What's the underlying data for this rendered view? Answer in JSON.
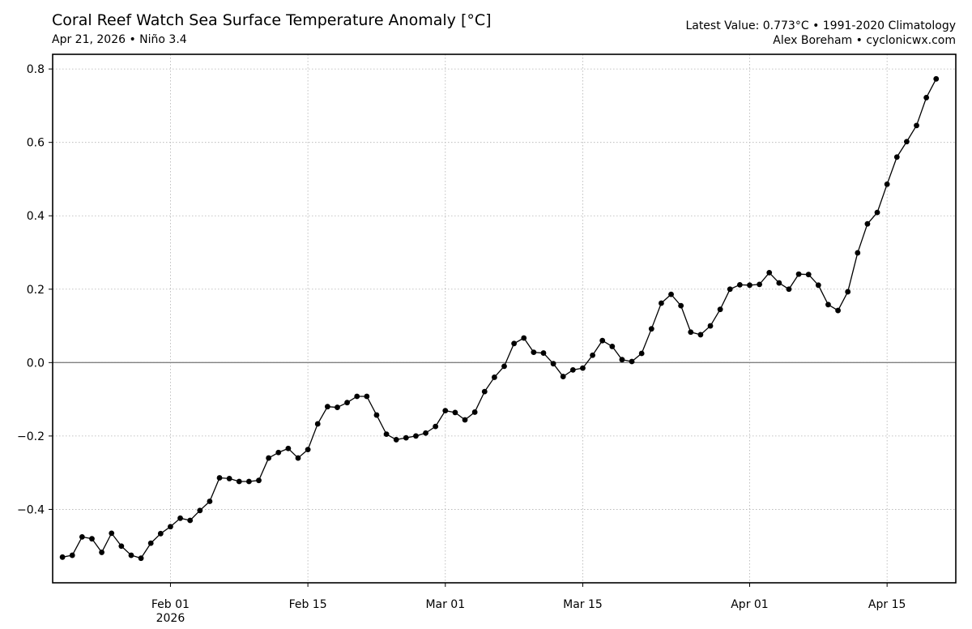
{
  "header": {
    "title": "Coral Reef Watch Sea Surface Temperature Anomaly [°C]",
    "subtitle": "Apr 21, 2026 • Niño 3.4",
    "info_line1": "Latest Value: 0.773°C • 1991-2020 Climatology",
    "info_line2": "Alex Boreham • cyclonicwx.com"
  },
  "chart_data": {
    "type": "line",
    "title": "Coral Reef Watch Sea Surface Temperature Anomaly [°C]",
    "subtitle": "Apr 21, 2026 • Niño 3.4",
    "x_start": "2026-01-21",
    "x_range": [
      "2026-01-20",
      "2026-04-22"
    ],
    "ylim": [
      -0.6,
      0.84
    ],
    "yticks": [
      -0.4,
      -0.2,
      0.0,
      0.2,
      0.4,
      0.6,
      0.8
    ],
    "ytick_labels": [
      "−0.4",
      "−0.2",
      "0.0",
      "0.2",
      "0.4",
      "0.6",
      "0.8"
    ],
    "xticks": [
      {
        "date": "2026-02-01",
        "label": "Feb 01",
        "sublabel": "2026"
      },
      {
        "date": "2026-02-15",
        "label": "Feb 15"
      },
      {
        "date": "2026-03-01",
        "label": "Mar 01"
      },
      {
        "date": "2026-03-15",
        "label": "Mar 15"
      },
      {
        "date": "2026-04-01",
        "label": "Apr 01"
      },
      {
        "date": "2026-04-15",
        "label": "Apr 15"
      }
    ],
    "grid": true,
    "zero_line": true,
    "line_color": "#000000",
    "zero_line_color": "#808080",
    "grid_color": "#b0b0b0",
    "values": [
      -0.53,
      -0.525,
      -0.475,
      -0.48,
      -0.517,
      -0.465,
      -0.5,
      -0.525,
      -0.533,
      -0.492,
      -0.466,
      -0.447,
      -0.424,
      -0.43,
      -0.403,
      -0.378,
      -0.314,
      -0.316,
      -0.324,
      -0.324,
      -0.321,
      -0.26,
      -0.245,
      -0.234,
      -0.26,
      -0.237,
      -0.167,
      -0.12,
      -0.122,
      -0.109,
      -0.092,
      -0.092,
      -0.143,
      -0.195,
      -0.21,
      -0.205,
      -0.2,
      -0.192,
      -0.174,
      -0.131,
      -0.136,
      -0.156,
      -0.135,
      -0.079,
      -0.04,
      -0.01,
      0.052,
      0.067,
      0.028,
      0.026,
      -0.003,
      -0.038,
      -0.02,
      -0.015,
      0.02,
      0.06,
      0.044,
      0.008,
      0.003,
      0.025,
      0.092,
      0.162,
      0.186,
      0.155,
      0.083,
      0.076,
      0.1,
      0.145,
      0.2,
      0.212,
      0.211,
      0.213,
      0.245,
      0.217,
      0.2,
      0.241,
      0.24,
      0.211,
      0.158,
      0.142,
      0.193,
      0.299,
      0.378,
      0.409,
      0.486,
      0.56,
      0.602,
      0.646,
      0.722,
      0.773
    ]
  }
}
